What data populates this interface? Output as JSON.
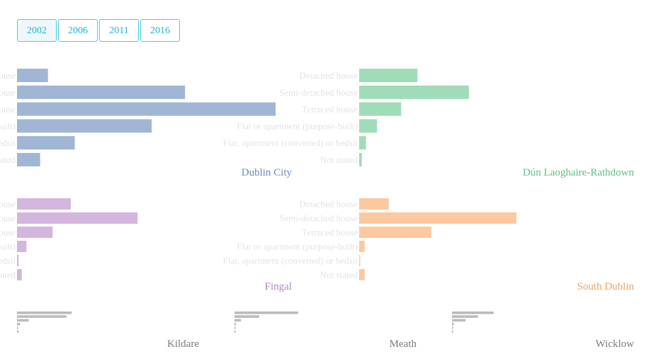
{
  "year_buttons": [
    "2002",
    "2006",
    "2011",
    "2016"
  ],
  "selected_year": "2002",
  "chart_data": {
    "type": "bar",
    "orientation": "horizontal",
    "categories": [
      "Detached house",
      "Semi-detached house",
      "Terraced house",
      "Flat or apartment (purpose-built)",
      "Flat, apartment (converted) or bedsit",
      "Not stated"
    ],
    "panels": [
      {
        "name": "Dublin City",
        "color": "#a0b6d4",
        "label_color": "#6b8bbd",
        "values": [
          11800,
          64000,
          98500,
          51300,
          22000,
          8800
        ]
      },
      {
        "name": "Dún Laoghaire-Rathdown",
        "color": "#a0dcb8",
        "label_color": "#5cbf8a",
        "values": [
          22200,
          41800,
          16000,
          6800,
          2600,
          1000
        ]
      },
      {
        "name": "Fingal",
        "color": "#d4b5de",
        "label_color": "#b07fc6",
        "values": [
          20500,
          46000,
          13600,
          3600,
          600,
          1800
        ]
      },
      {
        "name": "South Dublin",
        "color": "#fcc8a0",
        "label_color": "#f0a060",
        "values": [
          11300,
          60000,
          27500,
          2100,
          400,
          2100
        ]
      },
      {
        "name": "Kildare",
        "color": "#bbbbbb",
        "label_color": "#7a7a7a",
        "values": [
          21000,
          19000,
          4500,
          1200,
          400,
          600
        ]
      },
      {
        "name": "Meath",
        "color": "#bbbbbb",
        "label_color": "#7a7a7a",
        "values": [
          24500,
          9500,
          2500,
          600,
          200,
          300
        ]
      },
      {
        "name": "Wicklow",
        "color": "#bbbbbb",
        "label_color": "#7a7a7a",
        "values": [
          16000,
          10000,
          5200,
          700,
          300,
          400
        ]
      }
    ],
    "xlabel": "",
    "ylabel": "",
    "grid": false,
    "legend": "none"
  }
}
